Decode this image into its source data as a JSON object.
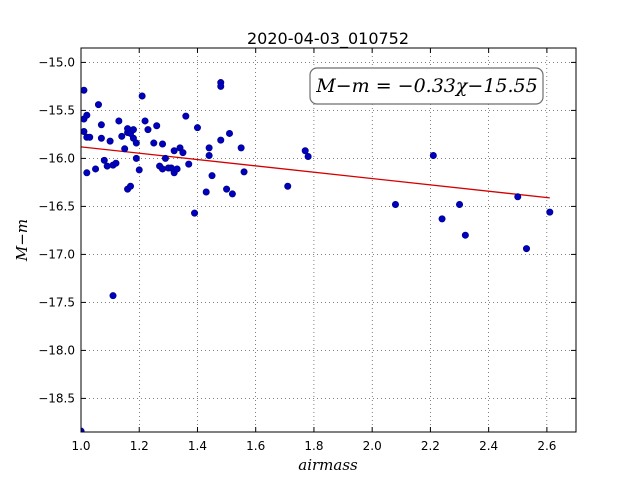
{
  "chart_data": {
    "type": "scatter",
    "title": "2020-04-03_010752",
    "xlabel": "airmass",
    "ylabel": "M−m",
    "xlim": [
      1.0,
      2.7
    ],
    "ylim": [
      -18.85,
      -14.85
    ],
    "y_inverted": true,
    "grid": true,
    "xticks": [
      "1.0",
      "1.2",
      "1.4",
      "1.6",
      "1.8",
      "2.0",
      "2.2",
      "2.4",
      "2.6"
    ],
    "yticks": [
      "−15.0",
      "−15.5",
      "−16.0",
      "−16.5",
      "−17.0",
      "−17.5",
      "−18.0",
      "−18.5"
    ],
    "annotation": "M−m = −0.33χ−15.55",
    "fit": {
      "slope": -0.33,
      "intercept": -15.55,
      "x_range": [
        1.0,
        2.61
      ],
      "color": "#d40000"
    },
    "series_color": "#0000bf",
    "points": [
      [
        1.0,
        -18.84
      ],
      [
        1.01,
        -15.29
      ],
      [
        1.01,
        -15.59
      ],
      [
        1.01,
        -15.72
      ],
      [
        1.02,
        -15.55
      ],
      [
        1.02,
        -15.78
      ],
      [
        1.02,
        -16.15
      ],
      [
        1.03,
        -15.78
      ],
      [
        1.05,
        -16.11
      ],
      [
        1.06,
        -15.44
      ],
      [
        1.07,
        -15.65
      ],
      [
        1.07,
        -15.79
      ],
      [
        1.08,
        -16.02
      ],
      [
        1.09,
        -16.08
      ],
      [
        1.1,
        -15.82
      ],
      [
        1.11,
        -16.07
      ],
      [
        1.11,
        -17.43
      ],
      [
        1.12,
        -16.05
      ],
      [
        1.13,
        -15.61
      ],
      [
        1.14,
        -15.77
      ],
      [
        1.15,
        -15.9
      ],
      [
        1.16,
        -15.73
      ],
      [
        1.16,
        -15.69
      ],
      [
        1.16,
        -16.32
      ],
      [
        1.17,
        -16.29
      ],
      [
        1.17,
        -15.74
      ],
      [
        1.18,
        -15.79
      ],
      [
        1.18,
        -15.7
      ],
      [
        1.19,
        -16.0
      ],
      [
        1.19,
        -15.84
      ],
      [
        1.2,
        -16.12
      ],
      [
        1.21,
        -15.35
      ],
      [
        1.22,
        -15.61
      ],
      [
        1.23,
        -15.7
      ],
      [
        1.25,
        -15.84
      ],
      [
        1.26,
        -15.66
      ],
      [
        1.27,
        -16.08
      ],
      [
        1.28,
        -16.11
      ],
      [
        1.28,
        -15.85
      ],
      [
        1.29,
        -16.0
      ],
      [
        1.3,
        -16.1
      ],
      [
        1.31,
        -16.1
      ],
      [
        1.32,
        -16.15
      ],
      [
        1.32,
        -15.92
      ],
      [
        1.33,
        -16.11
      ],
      [
        1.34,
        -15.89
      ],
      [
        1.35,
        -15.94
      ],
      [
        1.36,
        -15.56
      ],
      [
        1.37,
        -16.06
      ],
      [
        1.39,
        -16.57
      ],
      [
        1.4,
        -15.68
      ],
      [
        1.43,
        -16.35
      ],
      [
        1.44,
        -15.89
      ],
      [
        1.44,
        -15.97
      ],
      [
        1.45,
        -16.18
      ],
      [
        1.48,
        -15.21
      ],
      [
        1.48,
        -15.25
      ],
      [
        1.48,
        -15.81
      ],
      [
        1.5,
        -16.32
      ],
      [
        1.51,
        -15.74
      ],
      [
        1.52,
        -16.37
      ],
      [
        1.55,
        -15.89
      ],
      [
        1.56,
        -16.14
      ],
      [
        1.71,
        -16.29
      ],
      [
        1.77,
        -15.92
      ],
      [
        1.78,
        -15.98
      ],
      [
        2.08,
        -16.48
      ],
      [
        2.21,
        -15.97
      ],
      [
        2.24,
        -16.63
      ],
      [
        2.3,
        -16.48
      ],
      [
        2.32,
        -16.8
      ],
      [
        2.5,
        -16.4
      ],
      [
        2.53,
        -16.94
      ],
      [
        2.61,
        -16.56
      ]
    ]
  }
}
